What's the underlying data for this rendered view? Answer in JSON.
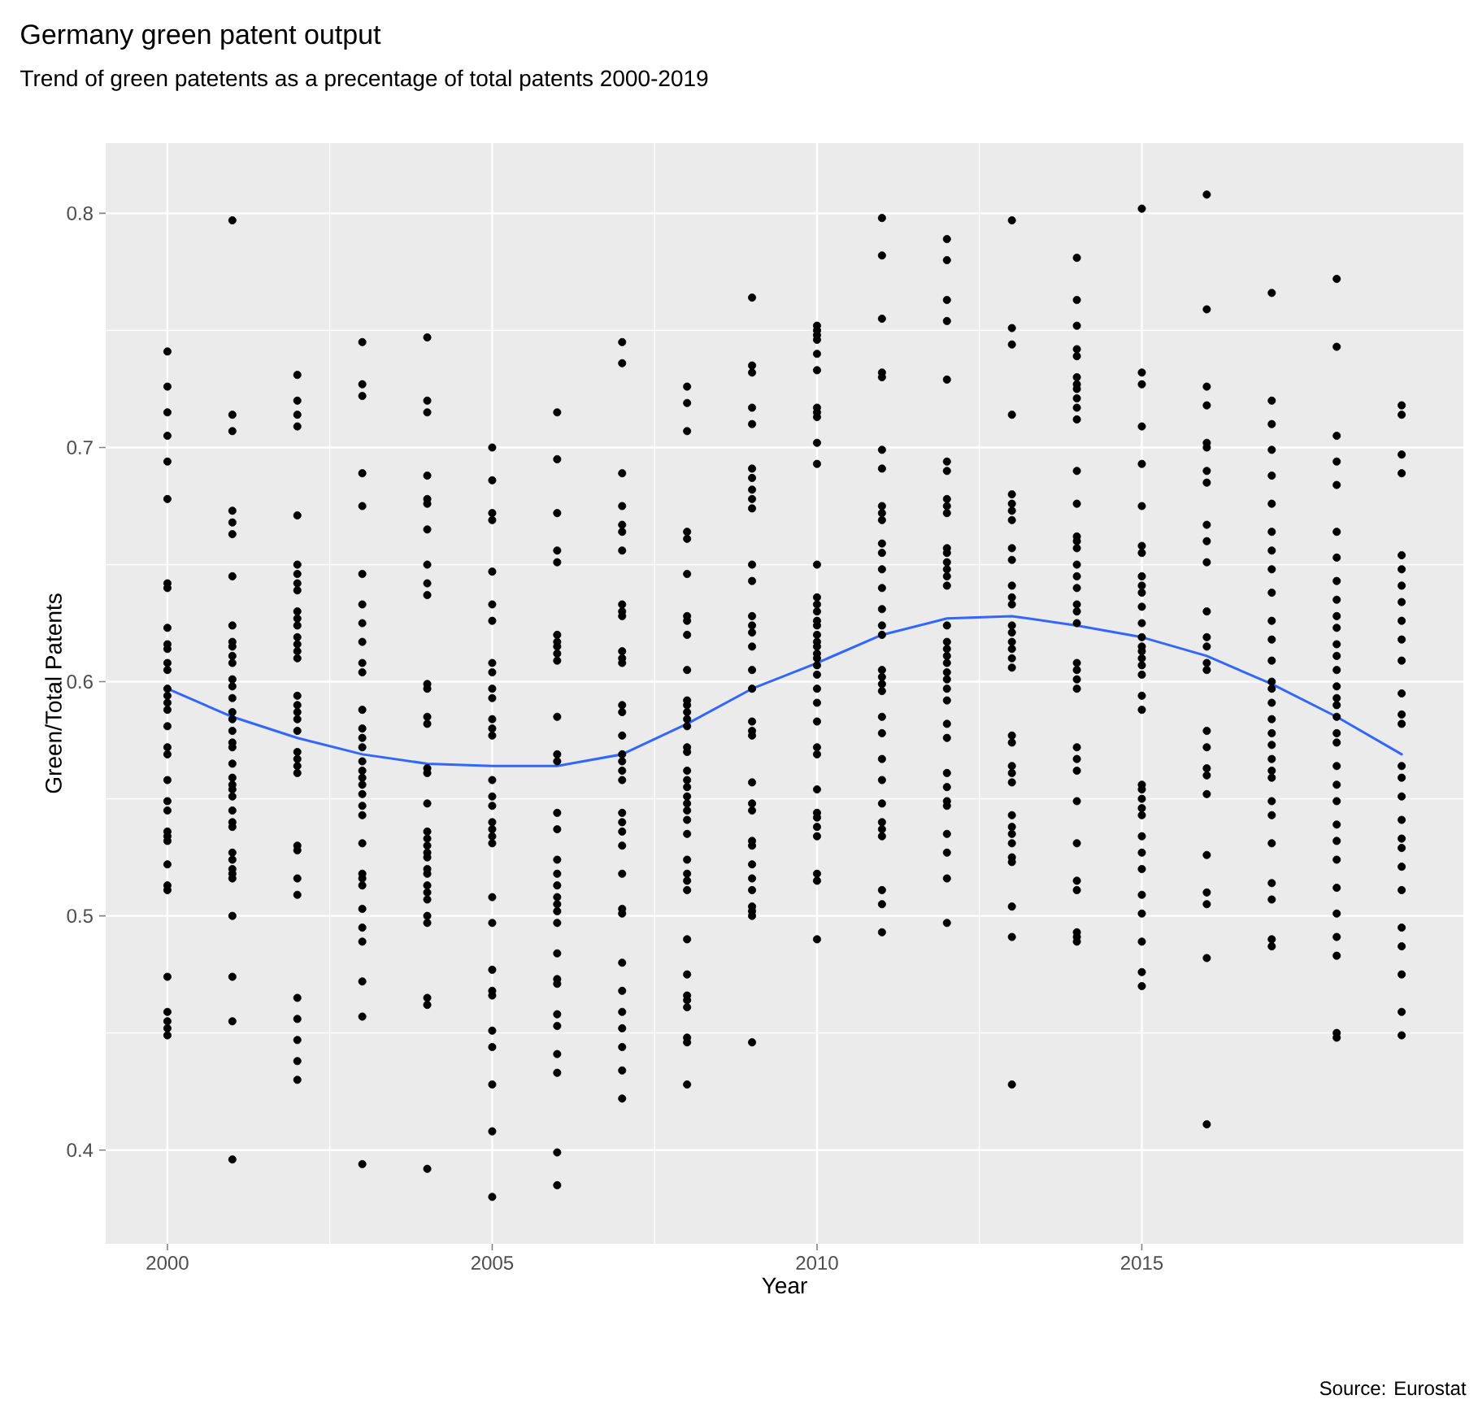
{
  "chart_data": {
    "type": "scatter",
    "title": "Germany green patent output",
    "subtitle": "Trend of green patetents as a precentage of total patents 2000-2019",
    "xlabel": "Year",
    "ylabel": "Green/Total Patents",
    "annotations": [
      "Source: Eurostat"
    ],
    "xlim": [
      1999.05,
      2019.95
    ],
    "ylim": [
      0.36,
      0.83
    ],
    "xticks": [
      2000,
      2005,
      2010,
      2015
    ],
    "yticks": [
      0.4,
      0.5,
      0.6,
      0.7,
      0.8
    ],
    "grid": true,
    "marker": "circle",
    "series": [
      {
        "color": "#000000",
        "x": [
          2000,
          2000,
          2000,
          2000,
          2000,
          2000,
          2000,
          2000,
          2000,
          2000,
          2000,
          2000,
          2000,
          2000,
          2000,
          2000,
          2000,
          2000,
          2000,
          2000,
          2000,
          2000,
          2000,
          2000,
          2000,
          2000,
          2000,
          2000,
          2000,
          2000,
          2000,
          2000,
          2000,
          2000
        ],
        "values": [
          0.741,
          0.726,
          0.715,
          0.705,
          0.694,
          0.678,
          0.642,
          0.64,
          0.623,
          0.616,
          0.614,
          0.608,
          0.605,
          0.597,
          0.594,
          0.591,
          0.588,
          0.581,
          0.572,
          0.569,
          0.558,
          0.549,
          0.545,
          0.536,
          0.534,
          0.532,
          0.522,
          0.513,
          0.511,
          0.474,
          0.459,
          0.455,
          0.452,
          0.449
        ]
      },
      {
        "color": "#000000",
        "x": [
          2001,
          2001,
          2001,
          2001,
          2001,
          2001,
          2001,
          2001,
          2001,
          2001,
          2001,
          2001,
          2001,
          2001,
          2001,
          2001,
          2001,
          2001,
          2001,
          2001,
          2001,
          2001,
          2001,
          2001,
          2001,
          2001,
          2001,
          2001,
          2001,
          2001,
          2001,
          2001,
          2001,
          2001,
          2001,
          2001,
          2001
        ],
        "values": [
          0.797,
          0.714,
          0.707,
          0.673,
          0.668,
          0.663,
          0.645,
          0.624,
          0.617,
          0.615,
          0.611,
          0.608,
          0.601,
          0.598,
          0.593,
          0.587,
          0.584,
          0.579,
          0.574,
          0.572,
          0.565,
          0.559,
          0.556,
          0.554,
          0.551,
          0.545,
          0.54,
          0.538,
          0.527,
          0.524,
          0.52,
          0.518,
          0.516,
          0.5,
          0.474,
          0.455,
          0.396
        ]
      },
      {
        "color": "#000000",
        "x": [
          2002,
          2002,
          2002,
          2002,
          2002,
          2002,
          2002,
          2002,
          2002,
          2002,
          2002,
          2002,
          2002,
          2002,
          2002,
          2002,
          2002,
          2002,
          2002,
          2002,
          2002,
          2002,
          2002,
          2002,
          2002,
          2002,
          2002,
          2002,
          2002,
          2002,
          2002,
          2002,
          2002,
          2002
        ],
        "values": [
          0.731,
          0.72,
          0.714,
          0.709,
          0.671,
          0.65,
          0.646,
          0.642,
          0.639,
          0.63,
          0.627,
          0.624,
          0.619,
          0.616,
          0.613,
          0.61,
          0.594,
          0.59,
          0.587,
          0.584,
          0.579,
          0.57,
          0.567,
          0.564,
          0.561,
          0.53,
          0.528,
          0.516,
          0.509,
          0.465,
          0.456,
          0.447,
          0.438,
          0.43
        ]
      },
      {
        "color": "#000000",
        "x": [
          2003,
          2003,
          2003,
          2003,
          2003,
          2003,
          2003,
          2003,
          2003,
          2003,
          2003,
          2003,
          2003,
          2003,
          2003,
          2003,
          2003,
          2003,
          2003,
          2003,
          2003,
          2003,
          2003,
          2003,
          2003,
          2003,
          2003,
          2003,
          2003,
          2003,
          2003,
          2003
        ],
        "values": [
          0.745,
          0.727,
          0.722,
          0.689,
          0.675,
          0.646,
          0.633,
          0.625,
          0.617,
          0.608,
          0.604,
          0.588,
          0.58,
          0.576,
          0.572,
          0.566,
          0.562,
          0.559,
          0.556,
          0.552,
          0.547,
          0.543,
          0.531,
          0.518,
          0.516,
          0.513,
          0.503,
          0.495,
          0.489,
          0.472,
          0.457,
          0.394
        ]
      },
      {
        "color": "#000000",
        "x": [
          2004,
          2004,
          2004,
          2004,
          2004,
          2004,
          2004,
          2004,
          2004,
          2004,
          2004,
          2004,
          2004,
          2004,
          2004,
          2004,
          2004,
          2004,
          2004,
          2004,
          2004,
          2004,
          2004,
          2004,
          2004,
          2004,
          2004,
          2004,
          2004,
          2004,
          2004,
          2004
        ],
        "values": [
          0.747,
          0.72,
          0.715,
          0.688,
          0.678,
          0.676,
          0.665,
          0.65,
          0.642,
          0.637,
          0.599,
          0.597,
          0.585,
          0.582,
          0.563,
          0.561,
          0.548,
          0.536,
          0.533,
          0.53,
          0.527,
          0.525,
          0.52,
          0.518,
          0.513,
          0.51,
          0.507,
          0.5,
          0.497,
          0.465,
          0.462,
          0.392
        ]
      },
      {
        "color": "#000000",
        "x": [
          2005,
          2005,
          2005,
          2005,
          2005,
          2005,
          2005,
          2005,
          2005,
          2005,
          2005,
          2005,
          2005,
          2005,
          2005,
          2005,
          2005,
          2005,
          2005,
          2005,
          2005,
          2005,
          2005,
          2005,
          2005,
          2005,
          2005,
          2005,
          2005,
          2005,
          2005
        ],
        "values": [
          0.7,
          0.686,
          0.672,
          0.669,
          0.647,
          0.633,
          0.626,
          0.608,
          0.604,
          0.597,
          0.593,
          0.584,
          0.58,
          0.577,
          0.558,
          0.551,
          0.547,
          0.54,
          0.537,
          0.534,
          0.531,
          0.508,
          0.497,
          0.477,
          0.468,
          0.466,
          0.451,
          0.444,
          0.428,
          0.408,
          0.38
        ]
      },
      {
        "color": "#000000",
        "x": [
          2006,
          2006,
          2006,
          2006,
          2006,
          2006,
          2006,
          2006,
          2006,
          2006,
          2006,
          2006,
          2006,
          2006,
          2006,
          2006,
          2006,
          2006,
          2006,
          2006,
          2006,
          2006,
          2006,
          2006,
          2006,
          2006,
          2006,
          2006,
          2006,
          2006,
          2006
        ],
        "values": [
          0.715,
          0.695,
          0.672,
          0.656,
          0.651,
          0.62,
          0.617,
          0.615,
          0.612,
          0.609,
          0.585,
          0.569,
          0.566,
          0.544,
          0.537,
          0.524,
          0.518,
          0.513,
          0.508,
          0.505,
          0.502,
          0.497,
          0.484,
          0.473,
          0.471,
          0.458,
          0.453,
          0.441,
          0.433,
          0.399,
          0.385
        ]
      },
      {
        "color": "#000000",
        "x": [
          2007,
          2007,
          2007,
          2007,
          2007,
          2007,
          2007,
          2007,
          2007,
          2007,
          2007,
          2007,
          2007,
          2007,
          2007,
          2007,
          2007,
          2007,
          2007,
          2007,
          2007,
          2007,
          2007,
          2007,
          2007,
          2007,
          2007,
          2007,
          2007,
          2007,
          2007,
          2007,
          2007,
          2007
        ],
        "values": [
          0.745,
          0.736,
          0.689,
          0.675,
          0.667,
          0.664,
          0.656,
          0.633,
          0.63,
          0.628,
          0.613,
          0.61,
          0.608,
          0.59,
          0.587,
          0.577,
          0.569,
          0.566,
          0.562,
          0.558,
          0.544,
          0.54,
          0.536,
          0.53,
          0.518,
          0.503,
          0.501,
          0.48,
          0.468,
          0.459,
          0.452,
          0.444,
          0.434,
          0.422
        ]
      },
      {
        "color": "#000000",
        "x": [
          2008,
          2008,
          2008,
          2008,
          2008,
          2008,
          2008,
          2008,
          2008,
          2008,
          2008,
          2008,
          2008,
          2008,
          2008,
          2008,
          2008,
          2008,
          2008,
          2008,
          2008,
          2008,
          2008,
          2008,
          2008,
          2008,
          2008,
          2008,
          2008,
          2008,
          2008,
          2008,
          2008,
          2008,
          2008,
          2008,
          2008
        ],
        "values": [
          0.726,
          0.719,
          0.707,
          0.664,
          0.661,
          0.646,
          0.628,
          0.626,
          0.62,
          0.605,
          0.592,
          0.59,
          0.587,
          0.584,
          0.581,
          0.572,
          0.57,
          0.562,
          0.558,
          0.555,
          0.551,
          0.548,
          0.545,
          0.541,
          0.535,
          0.524,
          0.518,
          0.515,
          0.511,
          0.49,
          0.475,
          0.466,
          0.464,
          0.461,
          0.448,
          0.446,
          0.428
        ]
      },
      {
        "color": "#000000",
        "x": [
          2009,
          2009,
          2009,
          2009,
          2009,
          2009,
          2009,
          2009,
          2009,
          2009,
          2009,
          2009,
          2009,
          2009,
          2009,
          2009,
          2009,
          2009,
          2009,
          2009,
          2009,
          2009,
          2009,
          2009,
          2009,
          2009,
          2009,
          2009,
          2009,
          2009,
          2009,
          2009,
          2009
        ],
        "values": [
          0.764,
          0.735,
          0.732,
          0.717,
          0.71,
          0.691,
          0.687,
          0.682,
          0.678,
          0.674,
          0.65,
          0.643,
          0.628,
          0.624,
          0.621,
          0.615,
          0.605,
          0.597,
          0.583,
          0.579,
          0.577,
          0.557,
          0.548,
          0.545,
          0.532,
          0.53,
          0.522,
          0.516,
          0.511,
          0.504,
          0.502,
          0.5,
          0.446
        ]
      },
      {
        "color": "#000000",
        "x": [
          2010,
          2010,
          2010,
          2010,
          2010,
          2010,
          2010,
          2010,
          2010,
          2010,
          2010,
          2010,
          2010,
          2010,
          2010,
          2010,
          2010,
          2010,
          2010,
          2010,
          2010,
          2010,
          2010,
          2010,
          2010,
          2010,
          2010,
          2010,
          2010,
          2010,
          2010,
          2010,
          2010,
          2010,
          2010,
          2010,
          2010
        ],
        "values": [
          0.752,
          0.75,
          0.748,
          0.746,
          0.74,
          0.733,
          0.717,
          0.715,
          0.713,
          0.702,
          0.693,
          0.65,
          0.636,
          0.633,
          0.63,
          0.626,
          0.624,
          0.62,
          0.617,
          0.615,
          0.612,
          0.61,
          0.607,
          0.603,
          0.597,
          0.591,
          0.583,
          0.572,
          0.569,
          0.554,
          0.544,
          0.542,
          0.538,
          0.534,
          0.518,
          0.515,
          0.49
        ]
      },
      {
        "color": "#000000",
        "x": [
          2011,
          2011,
          2011,
          2011,
          2011,
          2011,
          2011,
          2011,
          2011,
          2011,
          2011,
          2011,
          2011,
          2011,
          2011,
          2011,
          2011,
          2011,
          2011,
          2011,
          2011,
          2011,
          2011,
          2011,
          2011,
          2011,
          2011,
          2011,
          2011,
          2011,
          2011,
          2011
        ],
        "values": [
          0.798,
          0.782,
          0.755,
          0.732,
          0.73,
          0.699,
          0.691,
          0.675,
          0.672,
          0.669,
          0.659,
          0.655,
          0.648,
          0.64,
          0.631,
          0.624,
          0.62,
          0.605,
          0.602,
          0.599,
          0.596,
          0.585,
          0.578,
          0.567,
          0.558,
          0.548,
          0.54,
          0.537,
          0.534,
          0.511,
          0.505,
          0.493
        ]
      },
      {
        "color": "#000000",
        "x": [
          2012,
          2012,
          2012,
          2012,
          2012,
          2012,
          2012,
          2012,
          2012,
          2012,
          2012,
          2012,
          2012,
          2012,
          2012,
          2012,
          2012,
          2012,
          2012,
          2012,
          2012,
          2012,
          2012,
          2012,
          2012,
          2012,
          2012,
          2012,
          2012,
          2012,
          2012,
          2012,
          2012,
          2012,
          2012
        ],
        "values": [
          0.789,
          0.78,
          0.763,
          0.754,
          0.729,
          0.694,
          0.69,
          0.678,
          0.675,
          0.672,
          0.657,
          0.655,
          0.651,
          0.648,
          0.645,
          0.641,
          0.624,
          0.617,
          0.614,
          0.611,
          0.608,
          0.604,
          0.601,
          0.597,
          0.592,
          0.582,
          0.576,
          0.561,
          0.555,
          0.549,
          0.547,
          0.535,
          0.527,
          0.516,
          0.497
        ]
      },
      {
        "color": "#000000",
        "x": [
          2013,
          2013,
          2013,
          2013,
          2013,
          2013,
          2013,
          2013,
          2013,
          2013,
          2013,
          2013,
          2013,
          2013,
          2013,
          2013,
          2013,
          2013,
          2013,
          2013,
          2013,
          2013,
          2013,
          2013,
          2013,
          2013,
          2013,
          2013,
          2013,
          2013,
          2013,
          2013,
          2013
        ],
        "values": [
          0.797,
          0.751,
          0.744,
          0.714,
          0.68,
          0.676,
          0.673,
          0.669,
          0.657,
          0.652,
          0.641,
          0.636,
          0.633,
          0.624,
          0.621,
          0.617,
          0.614,
          0.61,
          0.606,
          0.577,
          0.574,
          0.564,
          0.561,
          0.557,
          0.543,
          0.538,
          0.535,
          0.531,
          0.525,
          0.523,
          0.504,
          0.491,
          0.428
        ]
      },
      {
        "color": "#000000",
        "x": [
          2014,
          2014,
          2014,
          2014,
          2014,
          2014,
          2014,
          2014,
          2014,
          2014,
          2014,
          2014,
          2014,
          2014,
          2014,
          2014,
          2014,
          2014,
          2014,
          2014,
          2014,
          2014,
          2014,
          2014,
          2014,
          2014,
          2014,
          2014,
          2014,
          2014,
          2014,
          2014,
          2014,
          2014,
          2014,
          2014
        ],
        "values": [
          0.781,
          0.763,
          0.752,
          0.742,
          0.739,
          0.73,
          0.727,
          0.725,
          0.721,
          0.717,
          0.712,
          0.69,
          0.676,
          0.662,
          0.66,
          0.657,
          0.65,
          0.645,
          0.64,
          0.633,
          0.63,
          0.625,
          0.608,
          0.605,
          0.601,
          0.597,
          0.572,
          0.567,
          0.562,
          0.549,
          0.531,
          0.515,
          0.511,
          0.493,
          0.491,
          0.489
        ]
      },
      {
        "color": "#000000",
        "x": [
          2015,
          2015,
          2015,
          2015,
          2015,
          2015,
          2015,
          2015,
          2015,
          2015,
          2015,
          2015,
          2015,
          2015,
          2015,
          2015,
          2015,
          2015,
          2015,
          2015,
          2015,
          2015,
          2015,
          2015,
          2015,
          2015,
          2015,
          2015,
          2015,
          2015,
          2015,
          2015,
          2015,
          2015
        ],
        "values": [
          0.802,
          0.732,
          0.727,
          0.709,
          0.693,
          0.675,
          0.658,
          0.655,
          0.645,
          0.641,
          0.638,
          0.632,
          0.625,
          0.619,
          0.615,
          0.613,
          0.61,
          0.607,
          0.603,
          0.594,
          0.588,
          0.556,
          0.554,
          0.55,
          0.546,
          0.543,
          0.534,
          0.527,
          0.52,
          0.509,
          0.501,
          0.489,
          0.476,
          0.47
        ]
      },
      {
        "color": "#000000",
        "x": [
          2016,
          2016,
          2016,
          2016,
          2016,
          2016,
          2016,
          2016,
          2016,
          2016,
          2016,
          2016,
          2016,
          2016,
          2016,
          2016,
          2016,
          2016,
          2016,
          2016,
          2016,
          2016,
          2016,
          2016,
          2016,
          2016
        ],
        "values": [
          0.808,
          0.759,
          0.726,
          0.718,
          0.702,
          0.7,
          0.69,
          0.685,
          0.667,
          0.66,
          0.651,
          0.63,
          0.619,
          0.615,
          0.608,
          0.605,
          0.579,
          0.572,
          0.563,
          0.56,
          0.552,
          0.526,
          0.51,
          0.505,
          0.482,
          0.411
        ]
      },
      {
        "color": "#000000",
        "x": [
          2017,
          2017,
          2017,
          2017,
          2017,
          2017,
          2017,
          2017,
          2017,
          2017,
          2017,
          2017,
          2017,
          2017,
          2017,
          2017,
          2017,
          2017,
          2017,
          2017,
          2017,
          2017,
          2017,
          2017,
          2017,
          2017,
          2017,
          2017,
          2017
        ],
        "values": [
          0.766,
          0.72,
          0.71,
          0.699,
          0.688,
          0.676,
          0.664,
          0.656,
          0.648,
          0.638,
          0.626,
          0.618,
          0.609,
          0.6,
          0.597,
          0.591,
          0.584,
          0.578,
          0.573,
          0.567,
          0.562,
          0.559,
          0.549,
          0.543,
          0.531,
          0.514,
          0.507,
          0.49,
          0.487
        ]
      },
      {
        "color": "#000000",
        "x": [
          2018,
          2018,
          2018,
          2018,
          2018,
          2018,
          2018,
          2018,
          2018,
          2018,
          2018,
          2018,
          2018,
          2018,
          2018,
          2018,
          2018,
          2018,
          2018,
          2018,
          2018,
          2018,
          2018,
          2018,
          2018,
          2018,
          2018,
          2018,
          2018,
          2018,
          2018,
          2018
        ],
        "values": [
          0.772,
          0.743,
          0.705,
          0.694,
          0.684,
          0.664,
          0.653,
          0.643,
          0.635,
          0.628,
          0.623,
          0.616,
          0.611,
          0.605,
          0.598,
          0.593,
          0.59,
          0.585,
          0.578,
          0.574,
          0.564,
          0.556,
          0.549,
          0.539,
          0.532,
          0.524,
          0.512,
          0.501,
          0.491,
          0.483,
          0.45,
          0.448
        ]
      },
      {
        "color": "#000000",
        "x": [
          2019,
          2019,
          2019,
          2019,
          2019,
          2019,
          2019,
          2019,
          2019,
          2019,
          2019,
          2019,
          2019,
          2019,
          2019,
          2019,
          2019,
          2019,
          2019,
          2019,
          2019,
          2019,
          2019,
          2019,
          2019,
          2019,
          2019
        ],
        "values": [
          0.718,
          0.714,
          0.697,
          0.689,
          0.654,
          0.648,
          0.641,
          0.634,
          0.626,
          0.618,
          0.609,
          0.595,
          0.586,
          0.582,
          0.564,
          0.559,
          0.551,
          0.541,
          0.533,
          0.529,
          0.521,
          0.511,
          0.495,
          0.487,
          0.475,
          0.459,
          0.449
        ]
      },
      {
        "type": "line",
        "marker": "none",
        "line_style": "solid",
        "color": "#3366ff",
        "x": [
          2000,
          2001,
          2002,
          2003,
          2004,
          2005,
          2006,
          2007,
          2008,
          2009,
          2010,
          2011,
          2012,
          2013,
          2014,
          2015,
          2016,
          2017,
          2018,
          2019
        ],
        "values": [
          0.597,
          0.585,
          0.576,
          0.569,
          0.565,
          0.564,
          0.564,
          0.569,
          0.582,
          0.597,
          0.608,
          0.62,
          0.627,
          0.628,
          0.624,
          0.619,
          0.611,
          0.599,
          0.585,
          0.569
        ]
      }
    ]
  }
}
